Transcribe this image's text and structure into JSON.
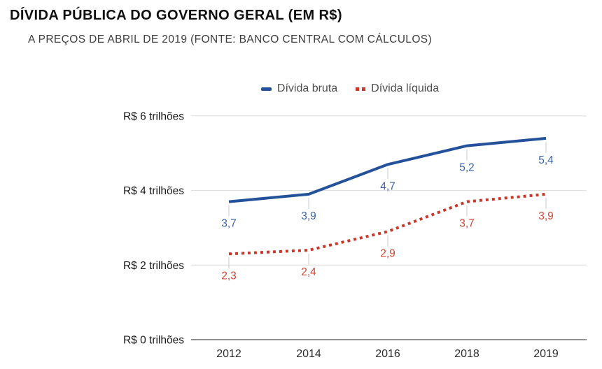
{
  "header": {
    "title": "DÍVIDA PÚBLICA DO GOVERNO GERAL (EM R$)",
    "subtitle": "A PREÇOS DE ABRIL DE 2019 (FONTE: BANCO CENTRAL COM CÁLCULOS)"
  },
  "legend": [
    {
      "label": "Dívida bruta",
      "style": "solid",
      "color": "#24529A"
    },
    {
      "label": "Dívida líquida",
      "style": "dotted",
      "color": "#C8392C"
    }
  ],
  "chart_data": {
    "type": "line",
    "title": "DÍVIDA PÚBLICA DO GOVERNO GERAL (EM R$)",
    "subtitle": "A PREÇOS DE ABRIL DE 2019 (FONTE: BANCO CENTRAL COM CÁLCULOS)",
    "x_scale": "categorical",
    "x": [
      2012,
      2014,
      2016,
      2018,
      2019
    ],
    "x_tick_labels": [
      "2012",
      "2014",
      "2016",
      "2018",
      "2019"
    ],
    "series": [
      {
        "name": "Dívida bruta",
        "style": "solid",
        "color": "#24529A",
        "label_color": "#3A64A6",
        "values": [
          3.7,
          3.9,
          4.7,
          5.2,
          5.4
        ],
        "point_labels": [
          "3,7",
          "3,9",
          "4,7",
          "5,2",
          "5,4"
        ]
      },
      {
        "name": "Dívida líquida",
        "style": "dotted",
        "color": "#C8392C",
        "label_color": "#D04535",
        "values": [
          2.3,
          2.4,
          2.9,
          3.7,
          3.9
        ],
        "point_labels": [
          "2,3",
          "2,4",
          "2,9",
          "3,7",
          "3,9"
        ]
      }
    ],
    "y_ticks": [
      {
        "value": 0,
        "label": "R$ 0 trilhões"
      },
      {
        "value": 2,
        "label": "R$ 2 trilhões"
      },
      {
        "value": 4,
        "label": "R$ 4 trilhões"
      },
      {
        "value": 6,
        "label": "R$ 6 trilhões"
      }
    ],
    "ylim": [
      0,
      6.6
    ],
    "xlabel": "",
    "ylabel": "R$ trilhões",
    "grid": true,
    "legend_position": "top"
  },
  "colors": {
    "title": "#0F0F0F",
    "subtitle": "#3D3D3D",
    "grid": "#DCDCDC",
    "axis": "#8F8F8F",
    "connector": "#CBCBCB",
    "y_tick_text": "#1A1A1A",
    "x_tick_text": "#2E2E2E",
    "legend_text": "#4D4D4D"
  }
}
